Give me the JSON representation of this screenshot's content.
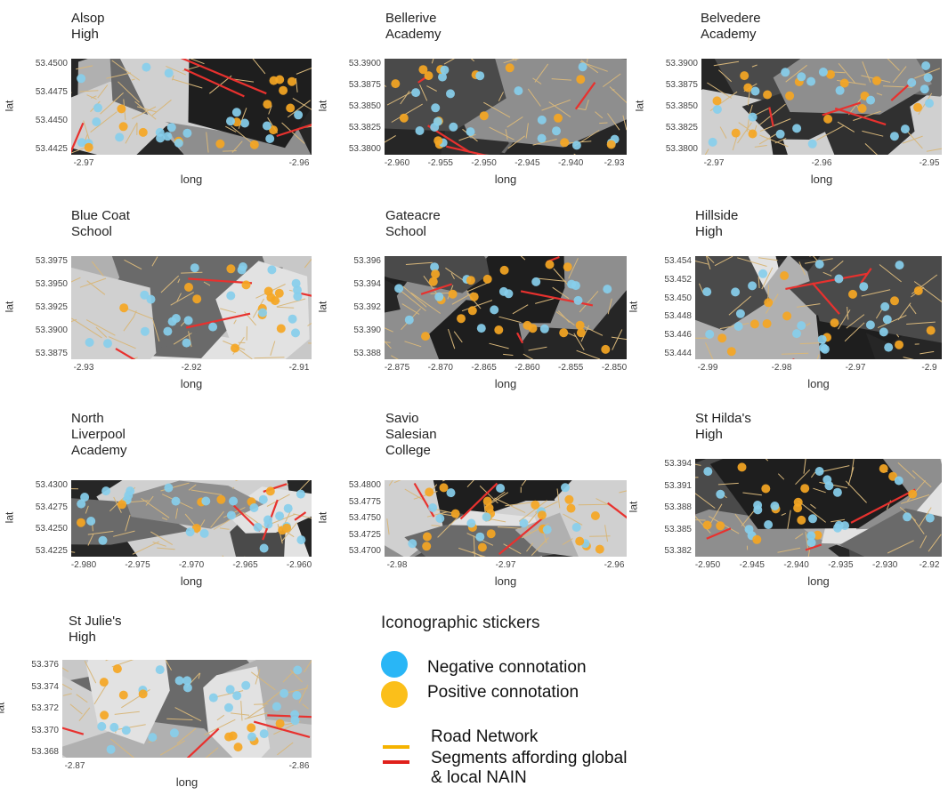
{
  "colors": {
    "negative": "#87CEEB",
    "positive": "#F5A623",
    "road": "#D8B77A",
    "segment": "#E8312E"
  },
  "axis": {
    "xlabel": "long",
    "ylabel": "lat"
  },
  "panels": [
    {
      "title": "Alsop\nHigh",
      "yticks": [
        "53.4500",
        "53.4475",
        "53.4450",
        "53.4425"
      ],
      "xticks": [
        "-2.97",
        "-2.96"
      ]
    },
    {
      "title": "Bellerive\nAcademy",
      "yticks": [
        "53.3900",
        "53.3875",
        "53.3850",
        "53.3825",
        "53.3800"
      ],
      "xticks": [
        "-2.960",
        "-2.955",
        "-2.950",
        "-2.945",
        "-2.940",
        "-2.93"
      ]
    },
    {
      "title": "Belvedere\nAcademy",
      "yticks": [
        "53.3900",
        "53.3875",
        "53.3850",
        "53.3825",
        "53.3800"
      ],
      "xticks": [
        "-2.97",
        "-2.96",
        "-2.95"
      ]
    },
    {
      "title": "Blue Coat\nSchool",
      "yticks": [
        "53.3975",
        "53.3950",
        "53.3925",
        "53.3900",
        "53.3875"
      ],
      "xticks": [
        "-2.93",
        "-2.92",
        "-2.91"
      ]
    },
    {
      "title": "Gateacre\nSchool",
      "yticks": [
        "53.396",
        "53.394",
        "53.392",
        "53.390",
        "53.388"
      ],
      "xticks": [
        "-2.875",
        "-2.870",
        "-2.865",
        "-2.860",
        "-2.855",
        "-2.850"
      ]
    },
    {
      "title": "Hillside\nHigh",
      "yticks": [
        "53.454",
        "53.452",
        "53.450",
        "53.448",
        "53.446",
        "53.444"
      ],
      "xticks": [
        "-2.99",
        "-2.98",
        "-2.97",
        "-2.9"
      ]
    },
    {
      "title": "North\nLiverpool\nAcademy",
      "yticks": [
        "53.4300",
        "53.4275",
        "53.4250",
        "53.4225"
      ],
      "xticks": [
        "-2.980",
        "-2.975",
        "-2.970",
        "-2.965",
        "-2.960"
      ]
    },
    {
      "title": "Savio\nSalesian\nCollege",
      "yticks": [
        "53.4800",
        "53.4775",
        "53.4750",
        "53.4725",
        "53.4700"
      ],
      "xticks": [
        "-2.98",
        "-2.97",
        "-2.96"
      ]
    },
    {
      "title": "St Hilda's\nHigh",
      "yticks": [
        "53.394",
        "53.391",
        "53.388",
        "53.385",
        "53.382"
      ],
      "xticks": [
        "-2.950",
        "-2.945",
        "-2.940",
        "-2.935",
        "-2.930",
        "-2.92"
      ]
    },
    {
      "title": "St Julie's\nHigh",
      "yticks": [
        "53.376",
        "53.374",
        "53.372",
        "53.370",
        "53.368"
      ],
      "xticks": [
        "-2.87",
        "-2.86"
      ]
    }
  ],
  "legend": {
    "title": "Iconographic stickers",
    "negative": "Negative connotation",
    "positive": "Positive connotation",
    "road": "Road Network",
    "segment": "Segments affording global\n& local NAIN"
  }
}
